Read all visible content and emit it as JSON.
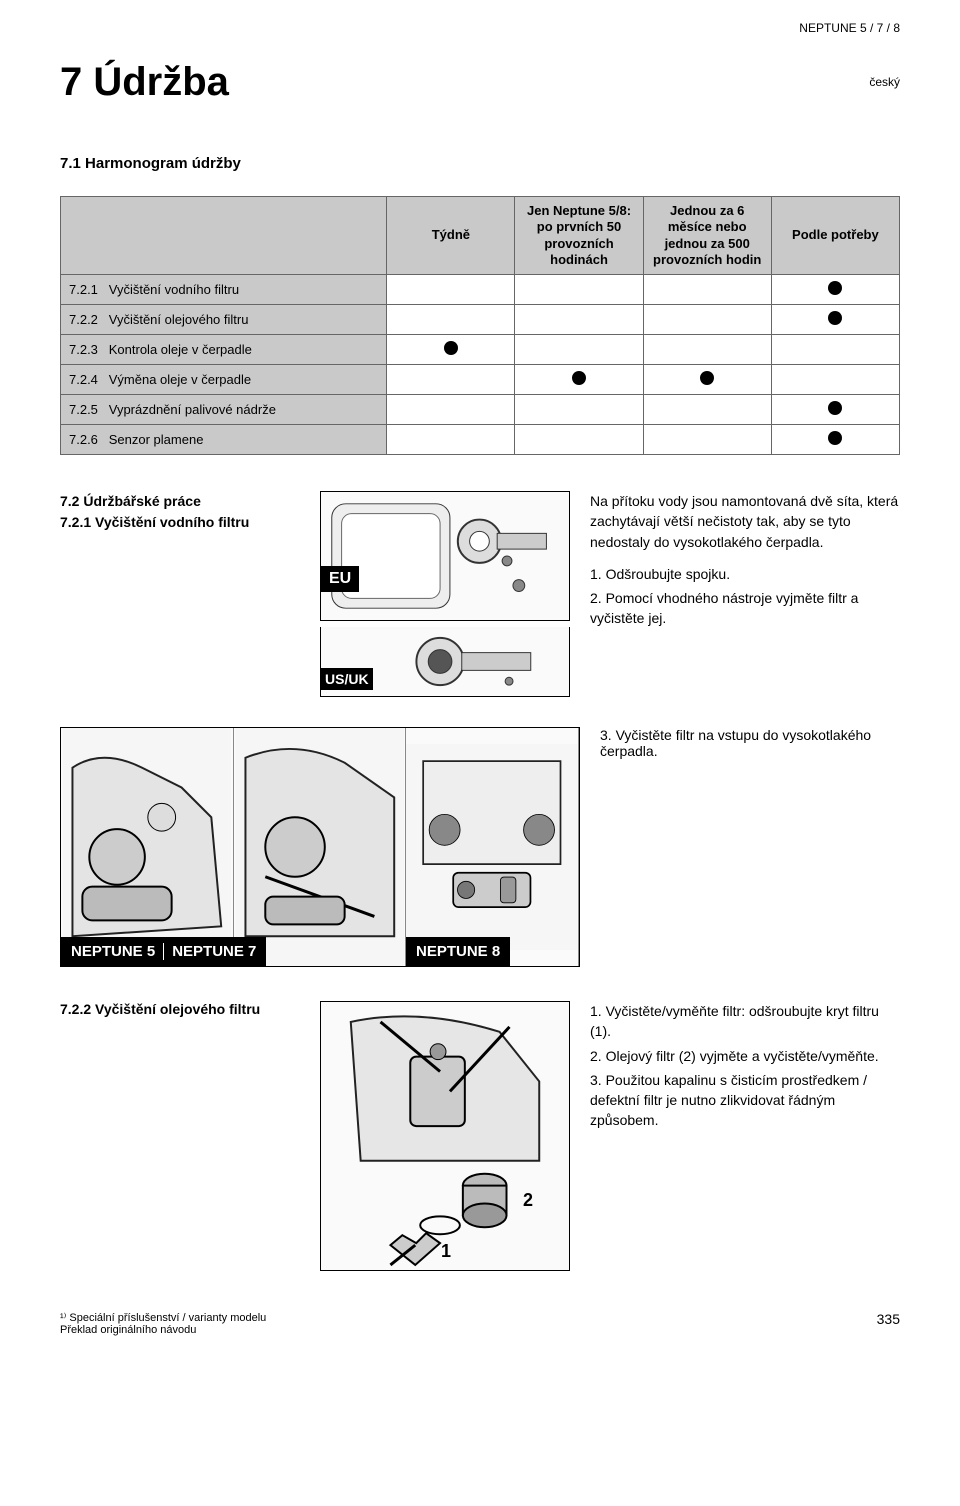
{
  "header": {
    "product": "NEPTUNE 5 / 7 / 8",
    "language": "český"
  },
  "title": "7  Údržba",
  "section71": {
    "heading": "7.1    Harmonogram údržby",
    "columns": [
      "Týdně",
      "Jen Neptune 5/8: po prvních 50 provozních hodinách",
      "Jednou za 6 měsíce nebo jednou za 500 provozních hodin",
      "Podle potřeby"
    ],
    "rows": [
      {
        "num": "7.2.1",
        "label": "Vyčištění vodního filtru",
        "marks": [
          false,
          false,
          false,
          true
        ]
      },
      {
        "num": "7.2.2",
        "label": "Vyčištění olejového filtru",
        "marks": [
          false,
          false,
          false,
          true
        ]
      },
      {
        "num": "7.2.3",
        "label": "Kontrola oleje v čerpadle",
        "marks": [
          true,
          false,
          false,
          false
        ]
      },
      {
        "num": "7.2.4",
        "label": "Výměna oleje v čerpadle",
        "marks": [
          false,
          true,
          true,
          false
        ]
      },
      {
        "num": "7.2.5",
        "label": "Vyprázdnění palivové nádrže",
        "marks": [
          false,
          false,
          false,
          true
        ]
      },
      {
        "num": "7.2.6",
        "label": "Senzor plamene",
        "marks": [
          false,
          false,
          false,
          true
        ]
      }
    ]
  },
  "section72": {
    "heading72": "7.2    Údržbářské práce",
    "heading721": "7.2.1  Vyčištění vodního filtru",
    "badge_eu": "EU",
    "badge_usuk": "US/UK",
    "intro": "Na přítoku vody jsou namontovaná dvě síta, která zachytávají větší nečistoty tak, aby se tyto nedostaly do vysokotlakého čerpadla.",
    "step1": "1. Odšroubujte spojku.",
    "step2": "2. Pomocí vhodného nástroje vyjměte filtr a vyčistěte jej.",
    "step3": "3. Vyčistěte filtr na vstupu do vysokotlakého čerpadla.",
    "panel_labels": [
      "NEPTUNE 5",
      "NEPTUNE 7",
      "NEPTUNE 8"
    ]
  },
  "section722": {
    "heading": "7.2.2  Vyčištění olejového filtru",
    "step1": "1. Vyčistěte/vyměňte filtr: odšroubujte kryt filtru (1).",
    "step2": "2. Olejový filtr (2) vyjměte a vyčistěte/vyměňte.",
    "step3": "3. Použitou kapalinu s čisticím prostředkem / defektní filtr je nutno zlikvidovat řádným způsobem.",
    "callout1": "1",
    "callout2": "2"
  },
  "footer": {
    "note1": "¹⁾ Speciální příslušenství / varianty modelu",
    "note2": "Překlad originálního návodu",
    "page": "335"
  }
}
